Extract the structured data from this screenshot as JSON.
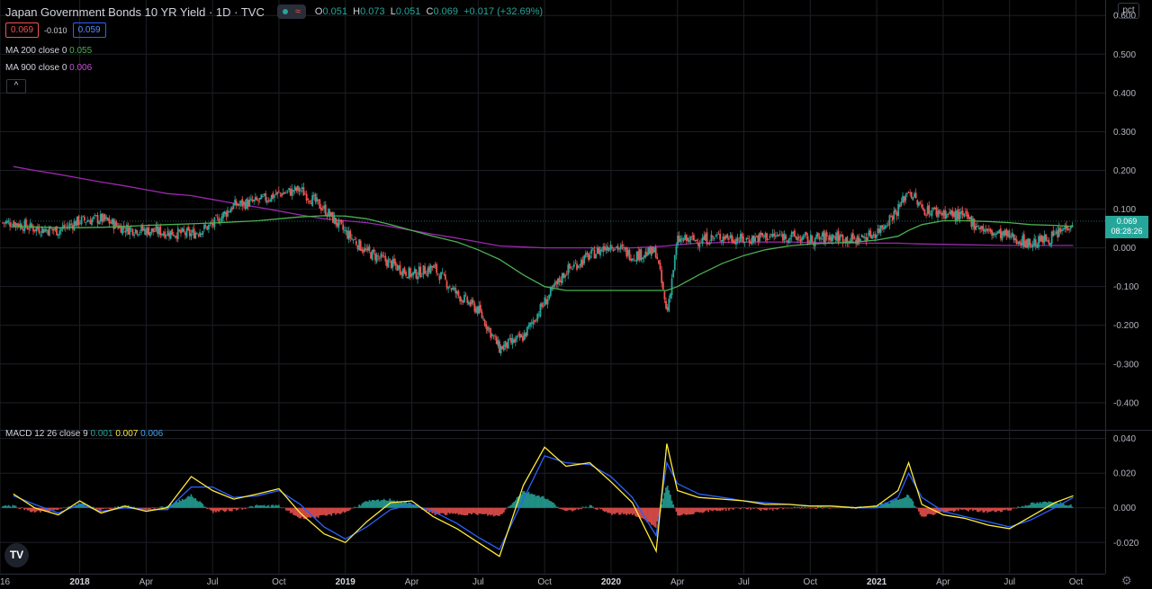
{
  "header": {
    "title": "Japan Government Bonds 10 YR Yield · 1D · TVC",
    "open_label": "O",
    "open": "0.051",
    "high_label": "H",
    "high": "0.073",
    "low_label": "L",
    "low": "0.051",
    "close_label": "C",
    "close": "0.069",
    "change": "+0.017 (+32.69%)"
  },
  "quote": {
    "sell": "0.069",
    "spread": "-0.010",
    "buy": "0.059"
  },
  "legend": {
    "ma200_label": "MA 200 close 0",
    "ma200_value": "0.055",
    "ma900_label": "MA 900 close 0",
    "ma900_value": "0.006",
    "macd_label": "MACD 12 26 close 9",
    "macd_hist": "0.001",
    "macd_line": "0.007",
    "macd_signal": "0.006"
  },
  "collapse_icon": "^",
  "scale_mode": "pct",
  "last_price_tag": {
    "price": "0.069",
    "countdown": "08:28:26"
  },
  "logo_text": "TV",
  "colors": {
    "up": "#26a69a",
    "down": "#ef5350",
    "ma200": "#4caf50",
    "ma900": "#9c27b0",
    "macd": "#ffeb3b",
    "signal": "#2962ff",
    "background": "#000000"
  },
  "chart_data": [
    {
      "type": "candlestick",
      "title": "Japan Government Bonds 10 YR Yield",
      "y_axis_ticks": [
        "0.600",
        "0.500",
        "0.400",
        "0.300",
        "0.200",
        "0.100",
        "0.000",
        "-0.100",
        "-0.200",
        "-0.300",
        "-0.400"
      ],
      "ylim": [
        -0.47,
        0.64
      ],
      "x_axis_ticks": [
        "16",
        "2018",
        "Apr",
        "Jul",
        "Oct",
        "2019",
        "Apr",
        "Jul",
        "Oct",
        "2020",
        "Apr",
        "Jul",
        "Oct",
        "2021",
        "Apr",
        "Jul",
        "Oct"
      ],
      "x": [
        2017.75,
        2017.83,
        2017.92,
        2018.0,
        2018.08,
        2018.17,
        2018.25,
        2018.33,
        2018.42,
        2018.5,
        2018.58,
        2018.67,
        2018.75,
        2018.83,
        2018.92,
        2019.0,
        2019.08,
        2019.17,
        2019.25,
        2019.33,
        2019.42,
        2019.5,
        2019.58,
        2019.67,
        2019.75,
        2019.83,
        2019.92,
        2020.0,
        2020.08,
        2020.17,
        2020.21,
        2020.25,
        2020.33,
        2020.42,
        2020.5,
        2020.58,
        2020.67,
        2020.75,
        2020.83,
        2020.92,
        2021.0,
        2021.08,
        2021.12,
        2021.17,
        2021.25,
        2021.33,
        2021.42,
        2021.5,
        2021.58,
        2021.67,
        2021.74
      ],
      "close": [
        0.065,
        0.05,
        0.045,
        0.07,
        0.075,
        0.05,
        0.045,
        0.04,
        0.035,
        0.06,
        0.11,
        0.12,
        0.14,
        0.15,
        0.1,
        0.04,
        -0.01,
        -0.04,
        -0.07,
        -0.05,
        -0.12,
        -0.16,
        -0.26,
        -0.23,
        -0.14,
        -0.06,
        -0.02,
        0.01,
        -0.02,
        -0.01,
        -0.17,
        0.02,
        0.02,
        0.03,
        0.02,
        0.03,
        0.03,
        0.02,
        0.03,
        0.02,
        0.04,
        0.1,
        0.15,
        0.1,
        0.09,
        0.08,
        0.04,
        0.03,
        0.01,
        0.03,
        0.069
      ],
      "ma200_close": [
        0.055,
        0.054,
        0.052,
        0.052,
        0.053,
        0.055,
        0.058,
        0.06,
        0.062,
        0.064,
        0.067,
        0.07,
        0.075,
        0.08,
        0.083,
        0.082,
        0.075,
        0.06,
        0.045,
        0.03,
        0.015,
        -0.005,
        -0.03,
        -0.07,
        -0.1,
        -0.11,
        -0.11,
        -0.11,
        -0.11,
        -0.11,
        -0.11,
        -0.1,
        -0.07,
        -0.04,
        -0.02,
        -0.005,
        0.005,
        0.01,
        0.012,
        0.015,
        0.02,
        0.03,
        0.045,
        0.06,
        0.07,
        0.07,
        0.068,
        0.065,
        0.06,
        0.058,
        0.055
      ],
      "ma900_close": [
        0.21,
        0.2,
        0.19,
        0.18,
        0.17,
        0.16,
        0.15,
        0.14,
        0.135,
        0.125,
        0.115,
        0.105,
        0.095,
        0.085,
        0.075,
        0.07,
        0.065,
        0.055,
        0.045,
        0.035,
        0.025,
        0.015,
        0.005,
        0.002,
        0.0,
        0.0,
        0.0,
        0.0,
        0.0,
        0.003,
        0.005,
        0.008,
        0.012,
        0.014,
        0.015,
        0.015,
        0.015,
        0.014,
        0.013,
        0.012,
        0.012,
        0.012,
        0.011,
        0.01,
        0.009,
        0.008,
        0.007,
        0.006,
        0.006,
        0.006,
        0.006
      ]
    },
    {
      "type": "line",
      "title": "MACD 12 26 close 9",
      "y_axis_ticks": [
        "0.040",
        "0.020",
        "0.000",
        "-0.020"
      ],
      "ylim": [
        -0.038,
        0.045
      ],
      "x": [
        2017.75,
        2017.83,
        2017.92,
        2018.0,
        2018.08,
        2018.17,
        2018.25,
        2018.33,
        2018.42,
        2018.5,
        2018.58,
        2018.67,
        2018.75,
        2018.83,
        2018.92,
        2019.0,
        2019.08,
        2019.17,
        2019.25,
        2019.33,
        2019.42,
        2019.5,
        2019.58,
        2019.67,
        2019.75,
        2019.83,
        2019.92,
        2020.0,
        2020.08,
        2020.17,
        2020.21,
        2020.25,
        2020.33,
        2020.42,
        2020.5,
        2020.58,
        2020.67,
        2020.75,
        2020.83,
        2020.92,
        2021.0,
        2021.08,
        2021.12,
        2021.17,
        2021.25,
        2021.33,
        2021.42,
        2021.5,
        2021.58,
        2021.67,
        2021.74
      ],
      "series": [
        {
          "name": "MACD",
          "values": [
            0.008,
            0.0,
            -0.004,
            0.004,
            -0.003,
            0.001,
            -0.002,
            0.0,
            0.018,
            0.01,
            0.005,
            0.008,
            0.011,
            -0.003,
            -0.015,
            -0.02,
            -0.008,
            0.003,
            0.004,
            -0.005,
            -0.012,
            -0.02,
            -0.028,
            0.013,
            0.035,
            0.024,
            0.026,
            0.015,
            0.003,
            -0.025,
            0.037,
            0.01,
            0.006,
            0.005,
            0.004,
            0.002,
            0.002,
            0.001,
            0.001,
            0.0,
            0.001,
            0.01,
            0.026,
            0.002,
            -0.004,
            -0.006,
            -0.01,
            -0.012,
            -0.005,
            0.003,
            0.007
          ]
        },
        {
          "name": "Signal",
          "values": [
            0.007,
            0.002,
            -0.003,
            0.002,
            -0.002,
            0.0,
            -0.001,
            -0.001,
            0.012,
            0.012,
            0.006,
            0.007,
            0.01,
            0.002,
            -0.011,
            -0.018,
            -0.011,
            -0.001,
            0.002,
            -0.002,
            -0.009,
            -0.017,
            -0.024,
            0.005,
            0.03,
            0.026,
            0.025,
            0.018,
            0.006,
            -0.016,
            0.026,
            0.014,
            0.008,
            0.006,
            0.004,
            0.003,
            0.002,
            0.001,
            0.001,
            0.0,
            0.0,
            0.006,
            0.02,
            0.006,
            -0.002,
            -0.005,
            -0.008,
            -0.011,
            -0.007,
            0.0,
            0.006
          ]
        }
      ]
    }
  ]
}
